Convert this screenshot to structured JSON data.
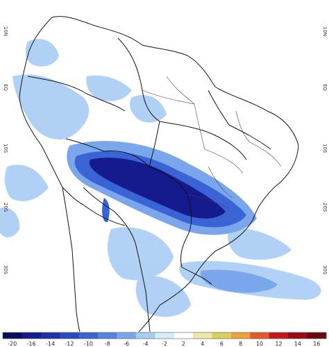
{
  "map": {
    "lat_labels_left": [
      "10N",
      "EQ",
      "10S",
      "20S",
      "30S"
    ],
    "lat_labels_right": [
      "10N",
      "EQ",
      "10S",
      "20S",
      "30S"
    ]
  },
  "legend": {
    "ticks": [
      "-20",
      "-16",
      "-14",
      "-12",
      "-10",
      "-8",
      "-6",
      "-4",
      "-2",
      "2",
      "4",
      "6",
      "8",
      "10",
      "12",
      "14",
      "16"
    ],
    "colors": [
      "#0b0b5e",
      "#151a8c",
      "#1f2fb0",
      "#2a48c8",
      "#3a63d6",
      "#5484e2",
      "#7aa6ec",
      "#a8cdf5",
      "#d6ecfb",
      "#ffffff",
      "#ece9a6",
      "#d9cf5e",
      "#f0a23a",
      "#e8592a",
      "#c8141e",
      "#9a0a18",
      "#6a0a10"
    ]
  }
}
